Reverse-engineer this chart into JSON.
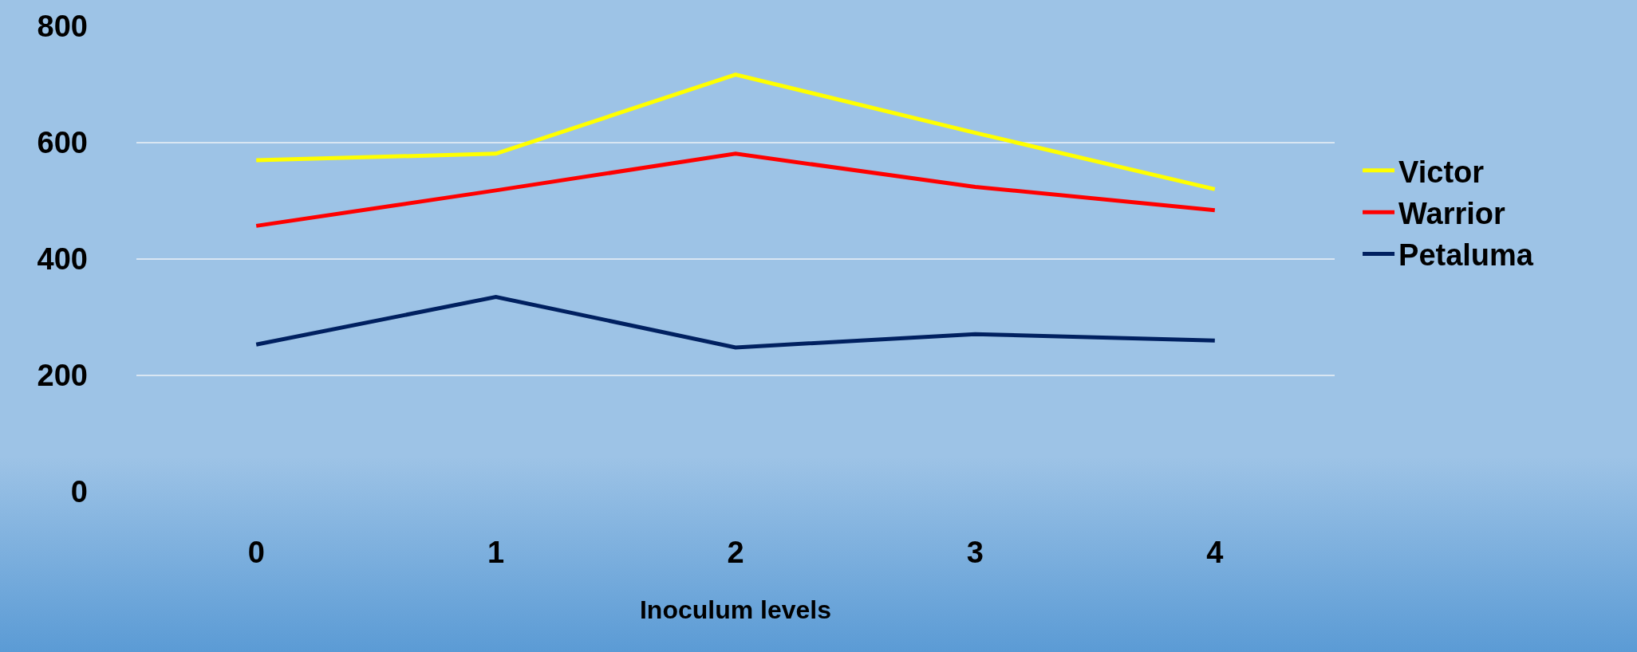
{
  "chart_data": {
    "type": "line",
    "xlabel": "Inoculum levels",
    "categories": [
      "0",
      "1",
      "2",
      "3",
      "4"
    ],
    "series": [
      {
        "name": "Victor",
        "color": "#ffff00",
        "values": [
          570,
          581,
          717,
          617,
          520
        ]
      },
      {
        "name": "Warrior",
        "color": "#ff0000",
        "values": [
          457,
          518,
          581,
          524,
          484
        ]
      },
      {
        "name": "Petaluma",
        "color": "#002060",
        "values": [
          253,
          335,
          248,
          271,
          260
        ]
      }
    ],
    "ylim": [
      0,
      800
    ],
    "yticks": [
      0,
      200,
      400,
      600,
      800
    ],
    "grid": "y",
    "legend": "right",
    "marker": "none",
    "line_style": "solid"
  }
}
